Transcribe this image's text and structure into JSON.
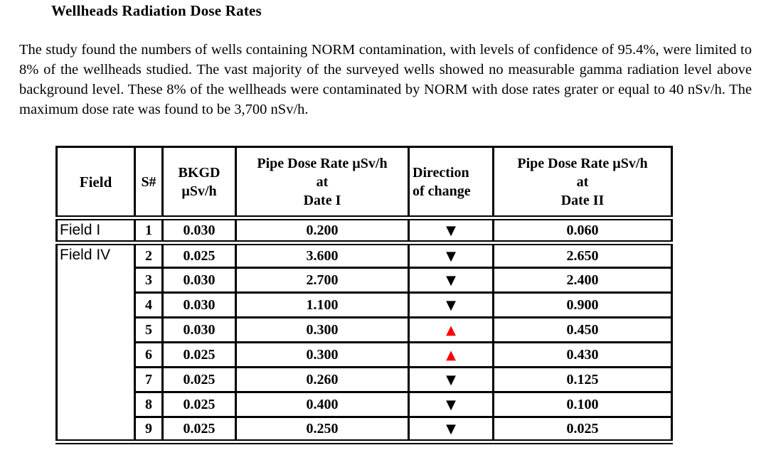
{
  "document": {
    "title": "Wellheads Radiation Dose Rates",
    "paragraph": "The study found the numbers of wells containing NORM contamination, with levels of confidence of 95.4%, were limited to 8% of the wellheads studied. The vast majority of the surveyed wells showed no measurable gamma radiation level above background level.  These 8% of the wellheads were contaminated by NORM with dose rates grater or equal to 40 nSv/h. The maximum dose rate was found to be 3,700 nSv/h."
  },
  "table": {
    "headers": [
      {
        "label": "Field"
      },
      {
        "label": "S#"
      },
      {
        "label": "BKGD\nµSv/h"
      },
      {
        "label": "Pipe Dose Rate µSv/h\nat\nDate I"
      },
      {
        "label": "Direction\nof change"
      },
      {
        "label": "Pipe Dose Rate µSv/h\nat\nDate II"
      }
    ],
    "icons": {
      "down": "▼",
      "up": "▲"
    },
    "colors": {
      "down": "#000000",
      "up": "#ff0000"
    },
    "rows": [
      {
        "field": "Field I",
        "field_rowspan": 1,
        "s": "1",
        "bkgd": "0.030",
        "date1": "0.200",
        "direction": "down",
        "date2": "0.060",
        "group_end": true
      },
      {
        "field": "Field IV",
        "field_rowspan": 8,
        "s": "2",
        "bkgd": "0.025",
        "date1": "3.600",
        "direction": "down",
        "date2": "2.650"
      },
      {
        "s": "3",
        "bkgd": "0.030",
        "date1": "2.700",
        "direction": "down",
        "date2": "2.400"
      },
      {
        "s": "4",
        "bkgd": "0.030",
        "date1": "1.100",
        "direction": "down",
        "date2": "0.900"
      },
      {
        "s": "5",
        "bkgd": "0.030",
        "date1": "0.300",
        "direction": "up",
        "date2": "0.450"
      },
      {
        "s": "6",
        "bkgd": "0.025",
        "date1": "0.300",
        "direction": "up",
        "date2": "0.430"
      },
      {
        "s": "7",
        "bkgd": "0.025",
        "date1": "0.260",
        "direction": "down",
        "date2": "0.125"
      },
      {
        "s": "8",
        "bkgd": "0.025",
        "date1": "0.400",
        "direction": "down",
        "date2": "0.100"
      },
      {
        "s": "9",
        "bkgd": "0.025",
        "date1": "0.250",
        "direction": "down",
        "date2": "0.025"
      }
    ]
  }
}
